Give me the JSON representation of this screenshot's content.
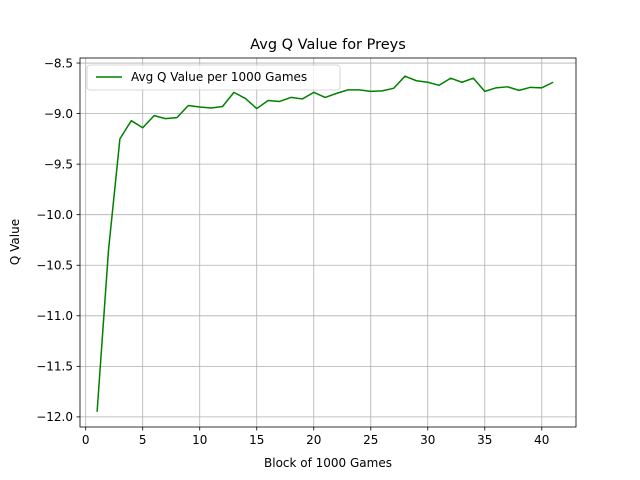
{
  "chart_data": {
    "type": "line",
    "title": "Avg Q Value for Preys",
    "xlabel": "Block of 1000 Games",
    "ylabel": "Q Value",
    "xlim": [
      -0.5,
      43.0
    ],
    "ylim": [
      -12.1,
      -8.45
    ],
    "xticks": [
      0,
      5,
      10,
      15,
      20,
      25,
      30,
      35,
      40
    ],
    "xtick_labels": [
      "0",
      "5",
      "10",
      "15",
      "20",
      "25",
      "30",
      "35",
      "40"
    ],
    "yticks": [
      -12.0,
      -11.5,
      -11.0,
      -10.5,
      -10.0,
      -9.5,
      -9.0,
      -8.5
    ],
    "ytick_labels": [
      "−12.0",
      "−11.5",
      "−11.0",
      "−10.5",
      "−10.0",
      "−9.5",
      "−9.0",
      "−8.5"
    ],
    "grid": true,
    "legend_position": "top-left",
    "series": [
      {
        "name": "Avg Q Value per 1000 Games",
        "color": "#008000",
        "x": [
          1,
          2,
          3,
          4,
          5,
          6,
          7,
          8,
          9,
          10,
          11,
          12,
          13,
          14,
          15,
          16,
          17,
          18,
          19,
          20,
          21,
          22,
          23,
          24,
          25,
          26,
          27,
          28,
          29,
          30,
          31,
          32,
          33,
          34,
          35,
          36,
          37,
          38,
          39,
          40,
          41
        ],
        "values": [
          -11.95,
          -10.35,
          -9.25,
          -9.07,
          -9.14,
          -9.02,
          -9.05,
          -9.04,
          -8.92,
          -8.935,
          -8.945,
          -8.93,
          -8.79,
          -8.85,
          -8.95,
          -8.87,
          -8.88,
          -8.84,
          -8.855,
          -8.79,
          -8.84,
          -8.8,
          -8.765,
          -8.765,
          -8.78,
          -8.775,
          -8.75,
          -8.63,
          -8.675,
          -8.69,
          -8.72,
          -8.65,
          -8.69,
          -8.65,
          -8.78,
          -8.745,
          -8.735,
          -8.77,
          -8.74,
          -8.745,
          -8.69
        ]
      }
    ]
  }
}
